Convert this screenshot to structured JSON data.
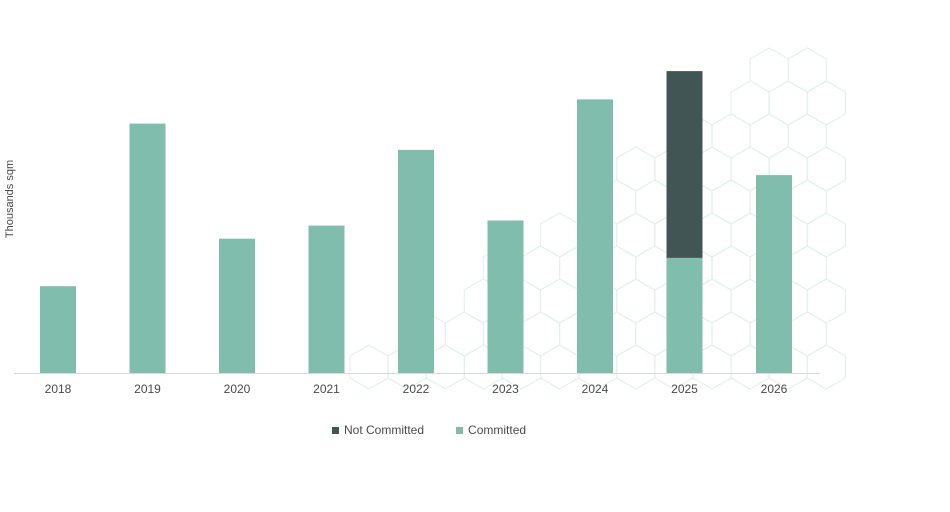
{
  "chart_data": {
    "type": "bar",
    "stacked": true,
    "title": "",
    "xlabel": "",
    "ylabel": "Thousands sqm",
    "categories": [
      "2018",
      "2019",
      "2020",
      "2021",
      "2022",
      "2023",
      "2024",
      "2025",
      "2026"
    ],
    "series": [
      {
        "name": "Committed",
        "color": "#80bdad",
        "values": [
          86,
          247,
          133,
          146,
          221,
          151,
          271,
          114,
          196
        ]
      },
      {
        "name": "Not Committed",
        "color": "#425555",
        "values": [
          0,
          0,
          0,
          0,
          0,
          0,
          0,
          185,
          0
        ]
      }
    ],
    "ylim": [
      0,
      310
    ],
    "grid": false,
    "legend_position": "bottom-center"
  },
  "legend": {
    "items": [
      {
        "label": "Not Committed",
        "color": "#425555"
      },
      {
        "label": "Committed",
        "color": "#80bdad"
      }
    ]
  }
}
